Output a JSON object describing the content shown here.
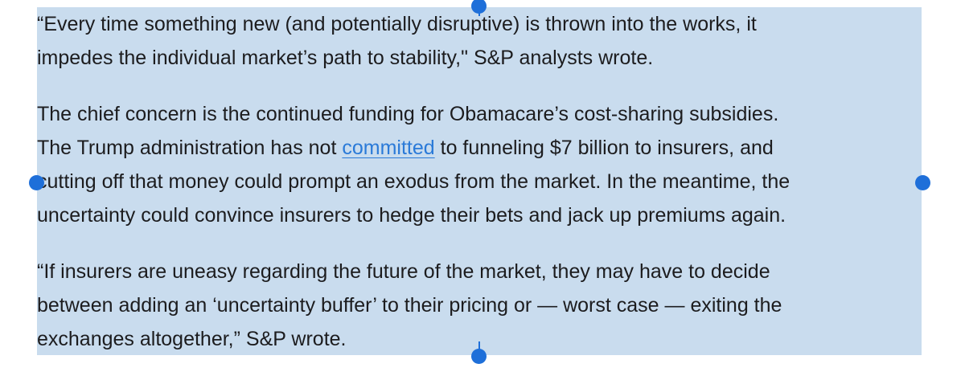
{
  "article": {
    "paragraphs": [
      {
        "lines": [
          "“Every time something new (and potentially disruptive) is thrown into the works, it",
          "impedes the individual market’s path to stability,\" S&P analysts wrote."
        ]
      },
      {
        "line1": "The chief concern is the continued funding for Obamacare’s cost-sharing subsidies.",
        "line2_before": "The Trump administration has not ",
        "link_text": "committed",
        "line2_after": " to funneling $7 billion to insurers, and",
        "line3": "cutting off that money could prompt an exodus from the market. In the meantime, the",
        "line4": "uncertainty could convince insurers to hedge their bets and jack up premiums again."
      },
      {
        "lines": [
          "“If insurers are uneasy regarding the future of the market, they may have to decide",
          "between adding an ‘uncertainty buffer’ to their pricing or — worst case — exiting the",
          "exchanges altogether,” S&P wrote."
        ]
      }
    ]
  },
  "colors": {
    "selection": "#c9dcee",
    "handle": "#1e6fd9",
    "link": "#2a7ad8",
    "text": "#1c1c1e"
  }
}
